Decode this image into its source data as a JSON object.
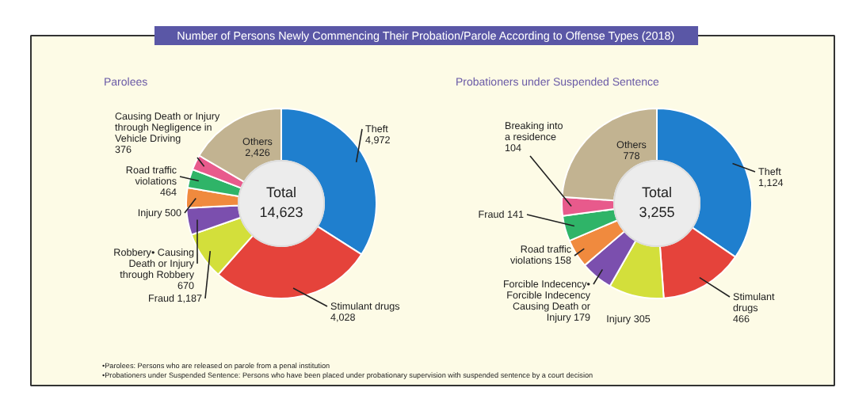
{
  "chart_data": [
    {
      "type": "donut",
      "title": "Number of Persons Newly Commencing Their Probation/Parole According to Offense Types (2018)",
      "subtitle": "Parolees",
      "categories": [
        "Theft",
        "Stimulant drugs",
        "Fraud",
        "Robbery• Causing Death or Injury through Robbery",
        "Injury",
        "Road traffic violations",
        "Causing Death or Injury through Negligence in Vehicle Driving",
        "Others"
      ],
      "values": [
        4972,
        4028,
        1187,
        670,
        500,
        464,
        376,
        2426
      ],
      "value_labels": [
        "4,972",
        "4,028",
        "1,187",
        "670",
        "500",
        "464",
        "376",
        "2,426"
      ],
      "colors": [
        "#1f7fce",
        "#e5433b",
        "#d3df3b",
        "#7b4fae",
        "#f08a3e",
        "#2fb468",
        "#e85a8c",
        "#c2b391"
      ],
      "annotations": [
        "Total",
        "14,623",
        "•Parolees: Persons who are released on parole from a penal institution",
        "•Probationers under Suspended Sentence: Persons who have been placed under probationary supervision with suspended sentence by a court decision"
      ]
    },
    {
      "type": "donut",
      "subtitle": "Probationers under Suspended Sentence",
      "categories": [
        "Theft",
        "Stimulant drugs",
        "Injury",
        "Forcible Indecency• Forcible Indecency Causing Death or Injury",
        "Road traffic violations",
        "Fraud",
        "Breaking into a residence",
        "Others"
      ],
      "values": [
        1124,
        466,
        305,
        179,
        158,
        141,
        104,
        778
      ],
      "value_labels": [
        "1,124",
        "466",
        "305",
        "179",
        "158",
        "141",
        "104",
        "778"
      ],
      "colors": [
        "#1f7fce",
        "#e5433b",
        "#d3df3b",
        "#7b4fae",
        "#f08a3e",
        "#2fb468",
        "#e85a8c",
        "#c2b391"
      ],
      "annotations": [
        "Total",
        "3,255"
      ]
    }
  ]
}
